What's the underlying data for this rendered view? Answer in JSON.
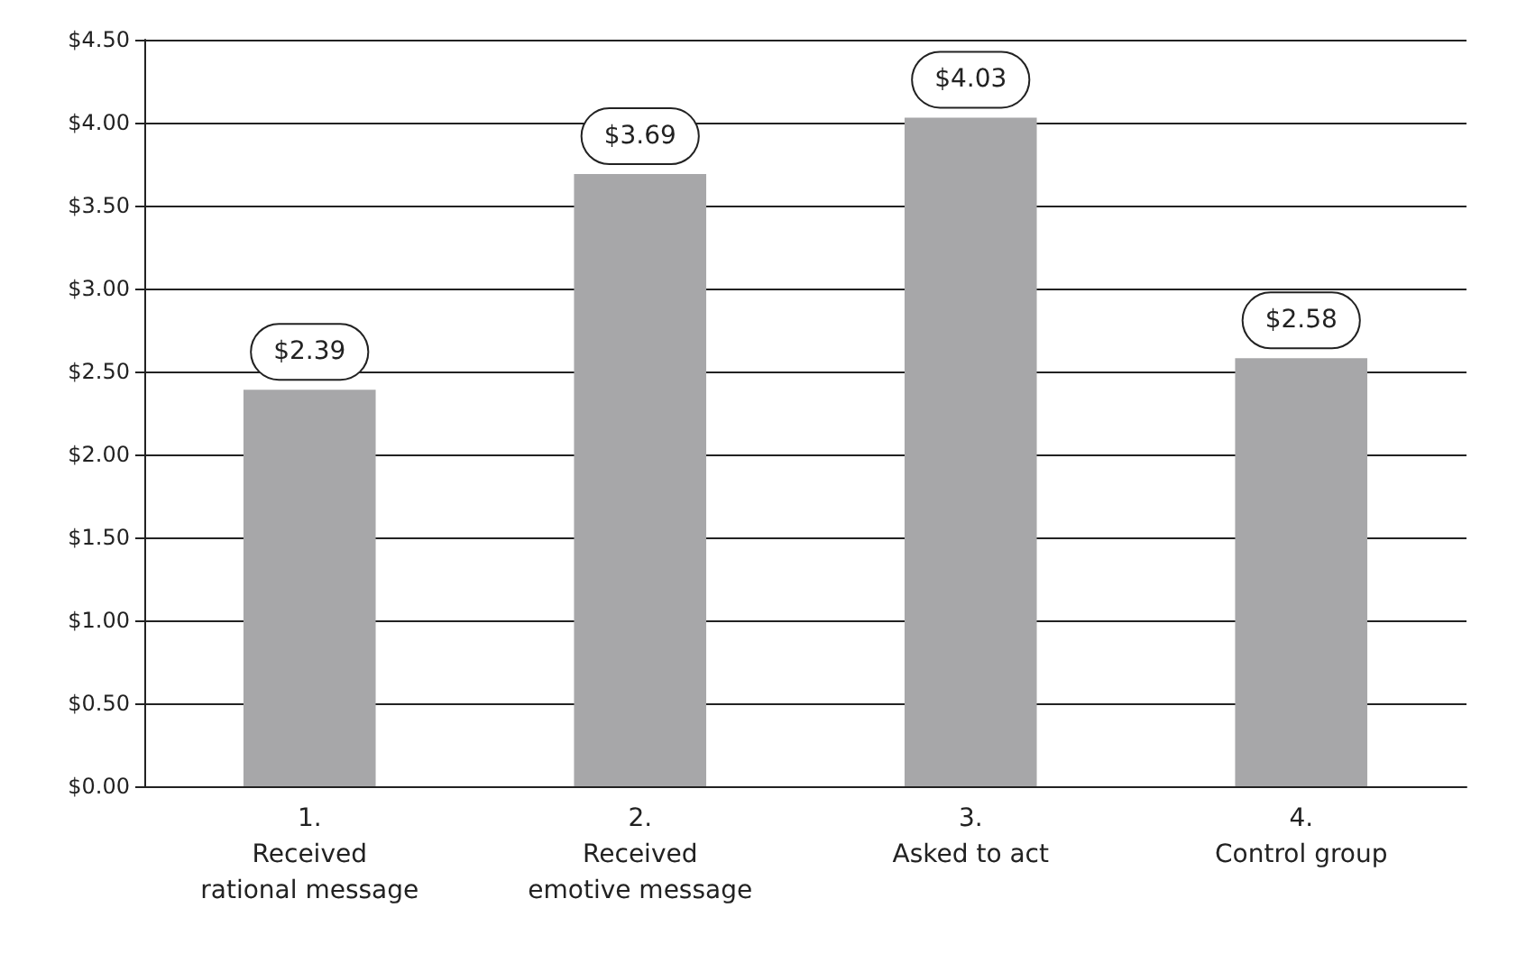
{
  "chart_data": {
    "type": "bar",
    "categories": [
      "1.\nReceived\nrational message",
      "2.\nReceived\nemotive message",
      "3.\nAsked to act",
      "4.\nControl group"
    ],
    "values": [
      2.39,
      3.69,
      4.03,
      2.58
    ],
    "value_labels": [
      "$2.39",
      "$3.69",
      "$4.03",
      "$2.58"
    ],
    "color": "#a7a7a9",
    "ylim": [
      0,
      4.5
    ],
    "yticks": [
      {
        "value": 0,
        "label": "$0.00"
      },
      {
        "value": 0.5,
        "label": "$0.50"
      },
      {
        "value": 1,
        "label": "$1.00"
      },
      {
        "value": 1.5,
        "label": "$1.50"
      },
      {
        "value": 2,
        "label": "$2.00"
      },
      {
        "value": 2.5,
        "label": "$2.50"
      },
      {
        "value": 3,
        "label": "$3.00"
      },
      {
        "value": 3.5,
        "label": "$3.50"
      },
      {
        "value": 4,
        "label": "$4.00"
      },
      {
        "value": 4.5,
        "label": "$4.50"
      }
    ],
    "grid": "y"
  }
}
